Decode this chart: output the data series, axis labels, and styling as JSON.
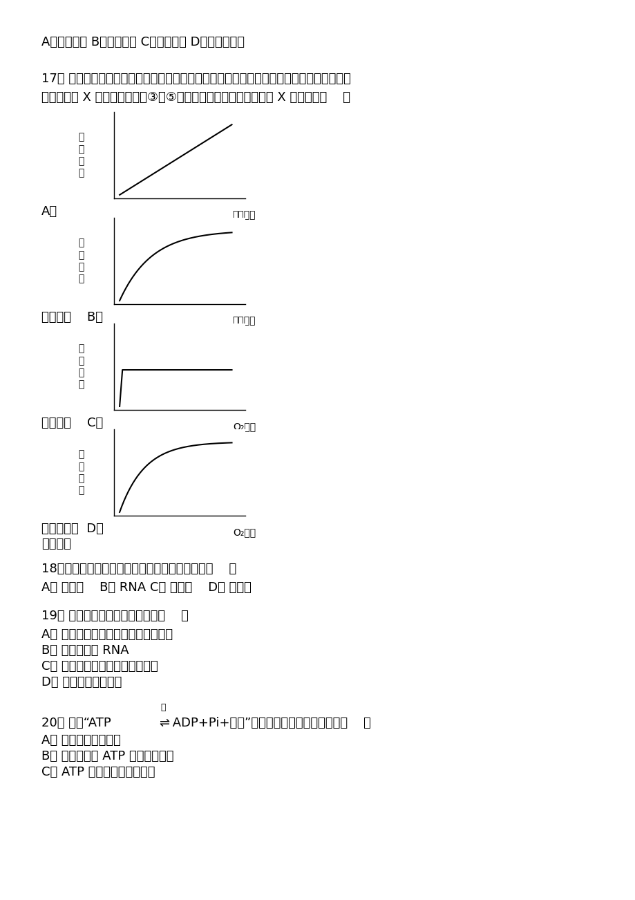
{
  "bg_color": "#ffffff",
  "line1": "A．主动运输 B．自由扩散 C．协助扩散 D．胞吞与胞吐",
  "q17_line1": "17． 某科学家在研究细胞膜运输物质时发现有下列四种关系，分别用四种曲线表示，在研究",
  "q17_line2": "具体的物质 X 时，发现与曲线③和⑤相符，试问：细胞膜运输物质 X 的方式是（    ）",
  "label_A": "A．",
  "label_B": "主动运输    B．",
  "label_C": "自由扩散    C．",
  "label_D": "内吞和外排  D．",
  "label_wufa": "无法判断",
  "chart_ylabel": "运\n输\n速\n度",
  "chart_A_xlabel": "物质浓度",
  "chart_B_xlabel": "物质浓度",
  "chart_C_xlabel": "O₂浓度",
  "chart_D_xlabel": "O₂浓度",
  "q18": "18．酶是活细胞产生的一类具有生物催化作用的（    ）",
  "q18_ans": "A． 蛋白质    B． RNA C． 无机物    D． 有机物",
  "q19": "19． 下列有关酶的叙述错误的是（    ）",
  "q19_A": "A． 组成大多数酶的基本单位是氨基酸",
  "q19_B": "B． 少数的酶是 RNA",
  "q19_C": "C． 每种酶都具有高效性，专一性",
  "q19_D": "D． 酶都具有消化功能",
  "q20_pre": "20． 关于“ATP",
  "q20_post": " ADP+Pi+能量”的反应式叙述中，正确的是（    ）",
  "q20_enzyme": "酶",
  "q20_arrow": "⇌",
  "q20_A": "A． 该反应是可逆反应",
  "q20_B": "B． 水解与合成 ATP 所需的酶相同",
  "q20_C": "C． ATP 中有三个高能磷酸键"
}
